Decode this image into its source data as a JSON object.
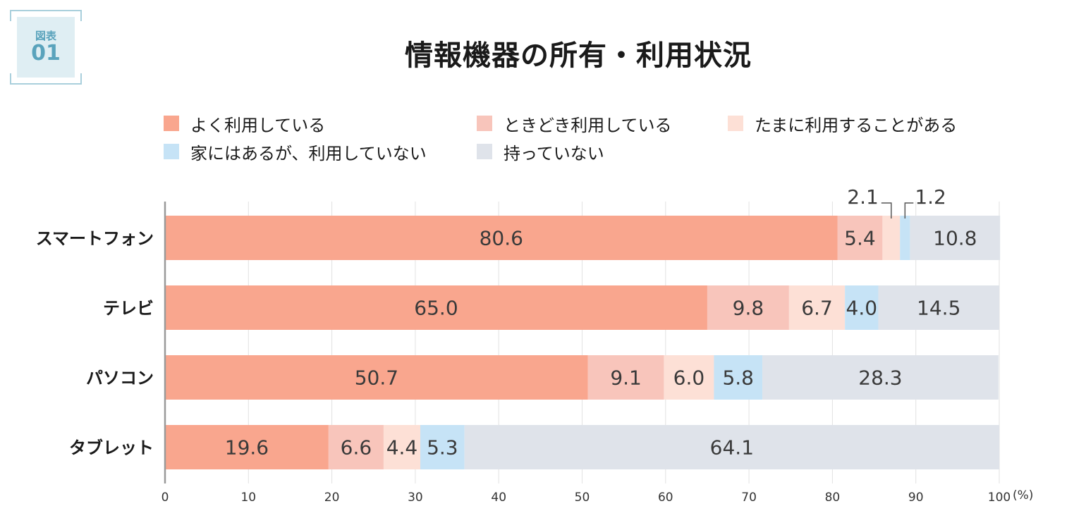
{
  "figure_label": {
    "label": "図表",
    "number": "01"
  },
  "colors": {
    "often": "#f9a68e",
    "sometimes": "#f8c5bb",
    "occasionally": "#fde0d6",
    "own_not_use": "#c6e3f6",
    "not_own": "#dfe3ea",
    "badge": "#5aa3bc",
    "badge_bg": "#dfeef3"
  },
  "chart_data": {
    "type": "bar",
    "orientation": "horizontal",
    "stacked": true,
    "title": "情報機器の所有・利用状況",
    "categories": [
      "スマートフォン",
      "テレビ",
      "パソコン",
      "タブレット"
    ],
    "series": [
      {
        "name": "よく利用している",
        "color": "#f9a68e",
        "values": [
          80.6,
          65.0,
          50.7,
          19.6
        ],
        "labels": [
          "80.6",
          "65.0",
          "50.7",
          "19.6"
        ]
      },
      {
        "name": "ときどき利用している",
        "color": "#f8c5bb",
        "values": [
          5.4,
          9.8,
          9.1,
          6.6
        ],
        "labels": [
          "5.4",
          "9.8",
          "9.1",
          "6.6"
        ]
      },
      {
        "name": "たまに利用することがある",
        "color": "#fde0d6",
        "values": [
          2.1,
          6.7,
          6.0,
          4.4
        ],
        "labels": [
          "2.1",
          "6.7",
          "6.0",
          "4.4"
        ]
      },
      {
        "name": "家にはあるが、利用していない",
        "color": "#c6e3f6",
        "values": [
          1.2,
          4.0,
          5.8,
          5.3
        ],
        "labels": [
          "1.2",
          "4.0",
          "5.8",
          "5.3"
        ]
      },
      {
        "name": "持っていない",
        "color": "#dfe3ea",
        "values": [
          10.8,
          14.5,
          28.3,
          64.1
        ],
        "labels": [
          "10.8",
          "14.5",
          "28.3",
          "64.1"
        ]
      }
    ],
    "callouts": [
      {
        "category": "スマートフォン",
        "series": "たまに利用することがある",
        "text": "2.1"
      },
      {
        "category": "スマートフォン",
        "series": "家にはあるが、利用していない",
        "text": "1.2"
      }
    ],
    "xlim": [
      0,
      100
    ],
    "xticks": [
      "0",
      "10",
      "20",
      "30",
      "40",
      "50",
      "60",
      "70",
      "80",
      "90",
      "100"
    ],
    "unit": "(%)",
    "grid": true,
    "legend_position": "top"
  }
}
